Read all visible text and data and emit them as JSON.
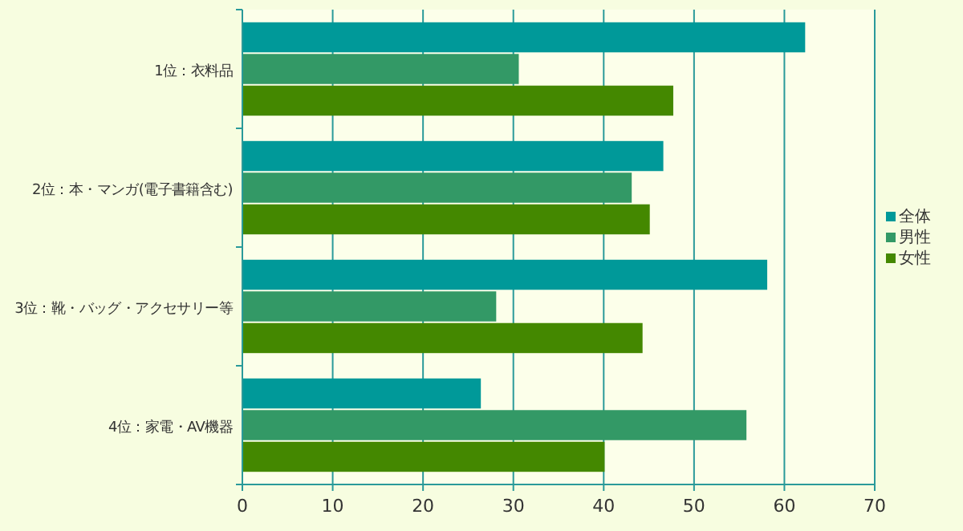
{
  "chart_data": {
    "type": "bar",
    "orientation": "horizontal",
    "categories": [
      "1位：衣料品",
      "2位：本・マンガ(電子書籍含む)",
      "3位：靴・バッグ・アクセサリー等",
      "4位：家電・AV機器"
    ],
    "series": [
      {
        "name": "全体",
        "color": "#009999",
        "values": [
          62.3,
          46.6,
          58.1,
          26.4
        ]
      },
      {
        "name": "男性",
        "color": "#339966",
        "values": [
          30.6,
          43.1,
          28.1,
          55.8
        ]
      },
      {
        "name": "女性",
        "color": "#448800",
        "values": [
          47.7,
          45.1,
          44.3,
          40.1
        ]
      }
    ],
    "xlim": [
      0,
      70
    ],
    "xticks": [
      0,
      10,
      20,
      30,
      40,
      50,
      60,
      70
    ],
    "grid": "x",
    "legend": "right"
  }
}
